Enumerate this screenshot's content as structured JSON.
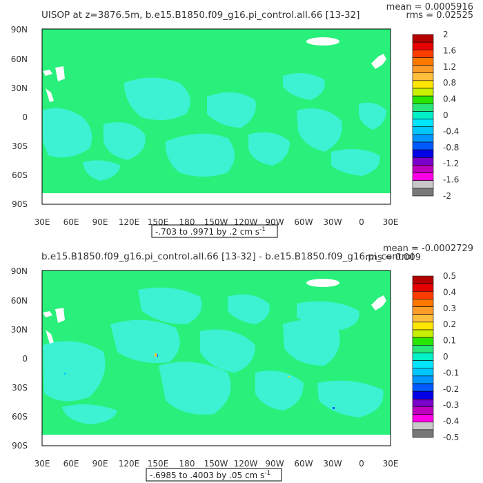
{
  "panels": [
    {
      "title": "UISOP at z=3876.5m, b.e15.B1850.f09_g16.pi_control.all.66 [13-32]",
      "mean": "mean = 0.0005916",
      "rms": "rms = 0.02525",
      "range_label": "-.703 to .9971 by .2 cm s",
      "range_sup": "-1",
      "lat_labels": [
        "90N",
        "60N",
        "30N",
        "0",
        "30S",
        "60S",
        "90S"
      ],
      "lon_labels": [
        "30E",
        "60E",
        "90E",
        "120E",
        "150E",
        "180",
        "150W",
        "120W",
        "90W",
        "60W",
        "30W",
        "0",
        "30E"
      ],
      "colorbar": {
        "labels": [
          "2",
          "1.6",
          "1.2",
          "0.8",
          "0.4",
          "0",
          "-0.4",
          "-0.8",
          "-1.2",
          "-1.6",
          "-2"
        ],
        "colors": [
          "#b40000",
          "#e60000",
          "#ff3c00",
          "#ff7800",
          "#ff9b28",
          "#ffbe3c",
          "#ffe600",
          "#c8f000",
          "#28e600",
          "#28e678",
          "#00f0c8",
          "#00e6ff",
          "#00c8ff",
          "#0096ff",
          "#005aff",
          "#0000e6",
          "#7800c8",
          "#be00be",
          "#ff00e6",
          "#c8c8c8",
          "#787878"
        ]
      }
    },
    {
      "title": "b.e15.B1850.f09_g16.pi_control.all.66 [13-32] - b.e15.B1850.f09_g16.pi_control",
      "mean": "mean = -0.0002729",
      "rms": "rms = 0.009",
      "range_label": "-.6985 to .4003 by .05 cm s",
      "range_sup": "-1",
      "lat_labels": [
        "90N",
        "60N",
        "30N",
        "0",
        "30S",
        "60S",
        "90S"
      ],
      "lon_labels": [
        "30E",
        "60E",
        "90E",
        "120E",
        "150E",
        "180",
        "150W",
        "120W",
        "90W",
        "60W",
        "30W",
        "0",
        "30E"
      ],
      "colorbar": {
        "labels": [
          "0.5",
          "0.4",
          "0.3",
          "0.2",
          "0.1",
          "0",
          "-0.1",
          "-0.2",
          "-0.3",
          "-0.4",
          "-0.5"
        ],
        "colors": [
          "#b40000",
          "#e60000",
          "#ff3c00",
          "#ff7800",
          "#ff9b28",
          "#ffbe3c",
          "#ffe600",
          "#c8f000",
          "#28e600",
          "#28e678",
          "#00f0c8",
          "#00e6ff",
          "#00c8ff",
          "#0096ff",
          "#005aff",
          "#0000e6",
          "#7800c8",
          "#be00be",
          "#ff00e6",
          "#c8c8c8",
          "#787878"
        ]
      }
    }
  ],
  "colors": {
    "field_main": "#28f07a",
    "field_neg": "#3cf2d2",
    "land_mask": "#ffffff",
    "frame": "#000000"
  }
}
